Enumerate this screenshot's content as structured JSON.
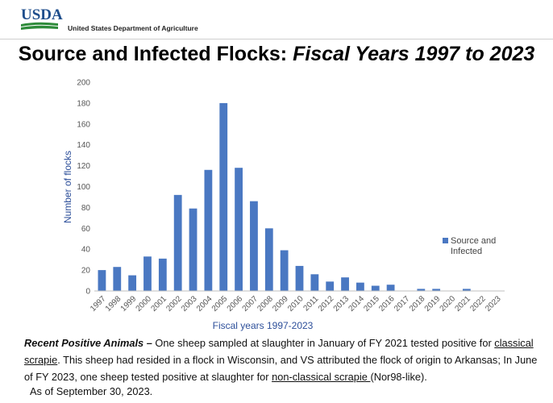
{
  "header": {
    "logo_text": "USDA",
    "agency": "United States Department of Agriculture",
    "colors": {
      "logo_blue": "#1f4e8c",
      "logo_green": "#2e8b3a"
    }
  },
  "title": {
    "main": "Source and Infected Flocks: ",
    "italic": "Fiscal Years 1997 to 2023"
  },
  "chart_data": {
    "type": "bar",
    "categories": [
      "1997",
      "1998",
      "1999",
      "2000",
      "2001",
      "2002",
      "2003",
      "2004",
      "2005",
      "2006",
      "2007",
      "2008",
      "2009",
      "2010",
      "2011",
      "2012",
      "2013",
      "2014",
      "2015",
      "2016",
      "2017",
      "2018",
      "2019",
      "2020",
      "2021",
      "2022",
      "2023"
    ],
    "series": [
      {
        "name": "Source and Infected",
        "values": [
          20,
          23,
          15,
          33,
          31,
          92,
          79,
          116,
          180,
          118,
          86,
          60,
          39,
          24,
          16,
          9,
          13,
          8,
          5,
          6,
          0,
          2,
          2,
          0,
          2,
          0,
          0
        ]
      }
    ],
    "xlabel": "Fiscal years 1997-2023",
    "ylabel": "Number of flocks",
    "ylim": [
      0,
      200
    ],
    "yticks": [
      0,
      20,
      40,
      60,
      80,
      100,
      120,
      140,
      160,
      180,
      200
    ],
    "grid": false,
    "legend": "right",
    "bar_color": "#4a78c2"
  },
  "note": {
    "lead": "Recent Positive Animals –",
    "part1": " One sheep sampled at slaughter in January of FY 2021 tested positive for ",
    "link1": "classical scrapie",
    "part2": ". This sheep had resided in a flock in Wisconsin, and VS attributed the flock of origin to Arkansas; In June of FY 2023, one sheep tested positive at slaughter for ",
    "link2": "non-classical scrapie ",
    "part3": "(Nor98-like)."
  },
  "as_of": "As of September 30, 2023."
}
